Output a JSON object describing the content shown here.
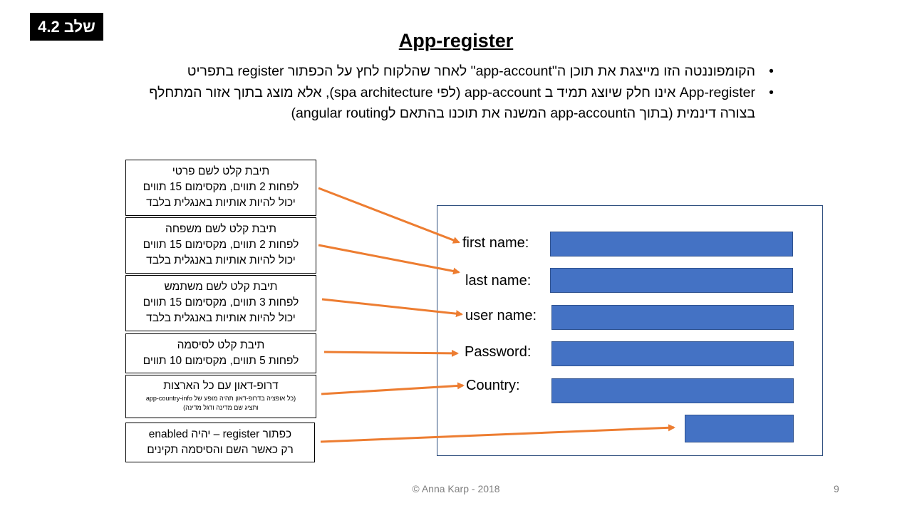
{
  "badge": "שלב 4.2",
  "title": "App-register",
  "bullets": [
    "הקומפוננטה הזו מייצגת את תוכן ה\"app-account\" לאחר שהלקוח לחץ על הכפתור  register בתפריט",
    "App-register אינו חלק שיוצג תמיד ב app-account (לפי spa architecture), אלא מוצג בתוך אזור המתחלף בצורה דינמית (בתוך הapp-account  המשנה את תוכנו בהתאם לangular routing)"
  ],
  "notes": [
    {
      "lines": [
        "תיבת קלט לשם פרטי",
        "לפחות 2 תווים, מקסימום 15 תווים",
        "יכול להיות אותיות באנגלית בלבד"
      ]
    },
    {
      "lines": [
        "תיבת קלט לשם משפחה",
        "לפחות 2 תווים, מקסימום 15 תווים",
        "יכול להיות אותיות באנגלית בלבד"
      ]
    },
    {
      "lines": [
        "תיבת קלט לשם משתמש",
        "לפחות 3 תווים, מקסימום 15 תווים",
        "יכול להיות אותיות באנגלית בלבד"
      ]
    },
    {
      "lines": [
        "תיבת קלט לסיסמה",
        "לפחות 5 תווים, מקסימום 10 תווים"
      ]
    },
    {
      "lines": [
        "דרופ-דאון עם כל הארצות"
      ],
      "small": [
        "(כל אופציה בדרופ-דאון תהיה מופע של app-country-info",
        "ותציג שם מדינה ודגל מדינה)"
      ]
    },
    {
      "lines": [
        "כפתור register – יהיה enabled",
        "רק כאשר השם והסיסמה תקינים"
      ]
    }
  ],
  "form": {
    "labels": [
      "first name:",
      "last name:",
      "user name:",
      "Password:",
      "Country:"
    ]
  },
  "colors": {
    "arrow": "#ed7d31",
    "field": "#4472c4"
  },
  "footer": "© Anna Karp - 2018",
  "page_number": "9"
}
